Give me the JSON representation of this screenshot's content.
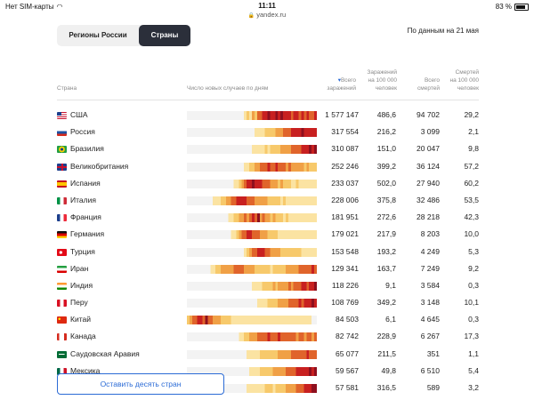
{
  "statusbar": {
    "carrier": "Нет SIM-карты",
    "time": "11:11",
    "url": "yandex.ru",
    "battery": "83 %"
  },
  "tabs": {
    "russia_label": "Регионы России",
    "world_label": "Страны",
    "active": "world"
  },
  "as_of": "По данным на 21 мая",
  "headers": {
    "country": "Страна",
    "daily_chart": "Число новых случаев по дням",
    "total_line1": "Всего",
    "total_line2": "заражений",
    "per100k_line1": "Заражений",
    "per100k_line2": "на 100 000",
    "per100k_line3": "человек",
    "deaths_line1": "Всего",
    "deaths_line2": "смертей",
    "dper_line1": "Смертей",
    "dper_line2": "на 100 000",
    "dper_line3": "человек"
  },
  "heat_colors": [
    "#f3f3f3",
    "#fbe3a2",
    "#f7c96b",
    "#f0a046",
    "#e0642b",
    "#c82020",
    "#8e0f1e"
  ],
  "rows": [
    {
      "name": "США",
      "flag": "us",
      "total": "1 577 147",
      "per100k": "486,6",
      "deaths": "94 702",
      "dper": "29,2",
      "heat": [
        0,
        0,
        0,
        0,
        0,
        0,
        0,
        0,
        0,
        0,
        0,
        0,
        0,
        0,
        0,
        0,
        0,
        0,
        0,
        0,
        0,
        0,
        1,
        2,
        1,
        3,
        2,
        4,
        4,
        5,
        5,
        6,
        5,
        5,
        6,
        5,
        6,
        5,
        5,
        5,
        4,
        5,
        5,
        4,
        5,
        4,
        5,
        4,
        4,
        5
      ]
    },
    {
      "name": "Россия",
      "flag": "ru",
      "total": "317 554",
      "per100k": "216,2",
      "deaths": "3 099",
      "dper": "2,1",
      "heat": [
        0,
        0,
        0,
        0,
        0,
        0,
        0,
        0,
        0,
        0,
        0,
        0,
        0,
        0,
        0,
        0,
        0,
        0,
        0,
        0,
        0,
        0,
        0,
        0,
        0,
        0,
        1,
        1,
        1,
        1,
        2,
        2,
        2,
        2,
        3,
        3,
        3,
        4,
        4,
        4,
        5,
        5,
        5,
        5,
        6,
        5,
        5,
        5,
        5,
        5
      ]
    },
    {
      "name": "Бразилия",
      "flag": "br",
      "total": "310 087",
      "per100k": "151,0",
      "deaths": "20 047",
      "dper": "9,8",
      "heat": [
        0,
        0,
        0,
        0,
        0,
        0,
        0,
        0,
        0,
        0,
        0,
        0,
        0,
        0,
        0,
        0,
        0,
        0,
        0,
        0,
        0,
        0,
        0,
        0,
        0,
        1,
        1,
        1,
        1,
        1,
        2,
        1,
        2,
        2,
        2,
        2,
        3,
        3,
        3,
        3,
        4,
        4,
        4,
        4,
        5,
        5,
        5,
        6,
        5,
        6
      ]
    },
    {
      "name": "Великобритания",
      "flag": "gb",
      "total": "252 246",
      "per100k": "399,2",
      "deaths": "36 124",
      "dper": "57,2",
      "heat": [
        0,
        0,
        0,
        0,
        0,
        0,
        0,
        0,
        0,
        0,
        0,
        0,
        0,
        0,
        0,
        0,
        0,
        0,
        0,
        0,
        0,
        0,
        1,
        1,
        2,
        2,
        3,
        3,
        4,
        4,
        4,
        5,
        4,
        4,
        5,
        4,
        4,
        4,
        3,
        4,
        3,
        3,
        3,
        3,
        3,
        2,
        3,
        2,
        2,
        2
      ]
    },
    {
      "name": "Испания",
      "flag": "es",
      "total": "233 037",
      "per100k": "502,0",
      "deaths": "27 940",
      "dper": "60,2",
      "heat": [
        0,
        0,
        0,
        0,
        0,
        0,
        0,
        0,
        0,
        0,
        0,
        0,
        0,
        0,
        0,
        0,
        0,
        0,
        1,
        1,
        2,
        3,
        4,
        5,
        5,
        6,
        5,
        5,
        5,
        4,
        4,
        4,
        3,
        3,
        3,
        2,
        3,
        2,
        2,
        2,
        1,
        1,
        2,
        1,
        1,
        1,
        1,
        1,
        1,
        1
      ]
    },
    {
      "name": "Италия",
      "flag": "it",
      "total": "228 006",
      "per100k": "375,8",
      "deaths": "32 486",
      "dper": "53,5",
      "heat": [
        0,
        0,
        0,
        0,
        0,
        0,
        0,
        0,
        0,
        0,
        1,
        1,
        1,
        2,
        2,
        3,
        3,
        4,
        4,
        5,
        5,
        5,
        5,
        4,
        4,
        4,
        3,
        3,
        3,
        3,
        3,
        2,
        2,
        2,
        2,
        2,
        1,
        2,
        1,
        1,
        1,
        1,
        1,
        1,
        1,
        1,
        1,
        1,
        1,
        1
      ]
    },
    {
      "name": "Франция",
      "flag": "fr",
      "total": "181 951",
      "per100k": "272,6",
      "deaths": "28 218",
      "dper": "42,3",
      "heat": [
        0,
        0,
        0,
        0,
        0,
        0,
        0,
        0,
        0,
        0,
        0,
        0,
        0,
        0,
        0,
        0,
        1,
        1,
        2,
        2,
        3,
        3,
        4,
        3,
        4,
        5,
        4,
        6,
        3,
        4,
        3,
        3,
        2,
        3,
        2,
        2,
        2,
        1,
        2,
        1,
        1,
        1,
        1,
        1,
        1,
        1,
        1,
        1,
        1,
        1
      ]
    },
    {
      "name": "Германия",
      "flag": "de",
      "total": "179 021",
      "per100k": "217,9",
      "deaths": "8 203",
      "dper": "10,0",
      "heat": [
        0,
        0,
        0,
        0,
        0,
        0,
        0,
        0,
        0,
        0,
        0,
        0,
        0,
        0,
        0,
        0,
        0,
        1,
        1,
        2,
        3,
        4,
        4,
        5,
        5,
        4,
        4,
        4,
        3,
        3,
        3,
        2,
        2,
        2,
        2,
        1,
        1,
        1,
        1,
        1,
        1,
        1,
        1,
        1,
        1,
        1,
        1,
        1,
        1,
        1
      ]
    },
    {
      "name": "Турция",
      "flag": "tr",
      "total": "153 548",
      "per100k": "193,2",
      "deaths": "4 249",
      "dper": "5,3",
      "heat": [
        0,
        0,
        0,
        0,
        0,
        0,
        0,
        0,
        0,
        0,
        0,
        0,
        0,
        0,
        0,
        0,
        0,
        0,
        0,
        0,
        0,
        0,
        1,
        2,
        3,
        4,
        4,
        5,
        5,
        5,
        4,
        4,
        3,
        3,
        3,
        3,
        2,
        2,
        2,
        2,
        2,
        2,
        2,
        2,
        1,
        1,
        1,
        1,
        1,
        1
      ]
    },
    {
      "name": "Иран",
      "flag": "ir",
      "total": "129 341",
      "per100k": "163,7",
      "deaths": "7 249",
      "dper": "9,2",
      "heat": [
        0,
        0,
        0,
        0,
        0,
        0,
        0,
        0,
        0,
        1,
        1,
        2,
        2,
        3,
        3,
        3,
        3,
        3,
        4,
        4,
        4,
        4,
        3,
        3,
        3,
        3,
        2,
        2,
        2,
        2,
        2,
        2,
        1,
        2,
        2,
        2,
        2,
        2,
        3,
        3,
        3,
        3,
        3,
        4,
        4,
        4,
        4,
        4,
        5,
        4
      ]
    },
    {
      "name": "Индия",
      "flag": "in",
      "total": "118 226",
      "per100k": "9,1",
      "deaths": "3 584",
      "dper": "0,3",
      "heat": [
        0,
        0,
        0,
        0,
        0,
        0,
        0,
        0,
        0,
        0,
        0,
        0,
        0,
        0,
        0,
        0,
        0,
        0,
        0,
        0,
        0,
        0,
        0,
        0,
        0,
        1,
        1,
        1,
        1,
        2,
        2,
        2,
        2,
        3,
        2,
        3,
        3,
        3,
        3,
        4,
        3,
        4,
        4,
        4,
        5,
        5,
        4,
        5,
        5,
        6
      ]
    },
    {
      "name": "Перу",
      "flag": "pe",
      "total": "108 769",
      "per100k": "349,2",
      "deaths": "3 148",
      "dper": "10,1",
      "heat": [
        0,
        0,
        0,
        0,
        0,
        0,
        0,
        0,
        0,
        0,
        0,
        0,
        0,
        0,
        0,
        0,
        0,
        0,
        0,
        0,
        0,
        0,
        0,
        0,
        0,
        0,
        0,
        1,
        1,
        1,
        1,
        2,
        2,
        2,
        2,
        3,
        3,
        3,
        3,
        4,
        4,
        4,
        4,
        5,
        4,
        5,
        5,
        5,
        6,
        5
      ]
    },
    {
      "name": "Китай",
      "flag": "cn",
      "total": "84 503",
      "per100k": "6,1",
      "deaths": "4 645",
      "dper": "0,3",
      "heat": [
        2,
        3,
        4,
        4,
        5,
        5,
        4,
        6,
        4,
        4,
        3,
        3,
        3,
        2,
        2,
        2,
        2,
        1,
        1,
        1,
        1,
        1,
        1,
        1,
        1,
        1,
        1,
        1,
        1,
        1,
        1,
        1,
        1,
        1,
        1,
        1,
        1,
        1,
        1,
        1,
        1,
        1,
        1,
        1,
        1,
        1,
        1,
        1,
        0,
        0
      ]
    },
    {
      "name": "Канада",
      "flag": "ca",
      "total": "82 742",
      "per100k": "228,9",
      "deaths": "6 267",
      "dper": "17,3",
      "heat": [
        0,
        0,
        0,
        0,
        0,
        0,
        0,
        0,
        0,
        0,
        0,
        0,
        0,
        0,
        0,
        0,
        0,
        0,
        0,
        0,
        1,
        1,
        2,
        2,
        3,
        3,
        3,
        4,
        4,
        4,
        4,
        5,
        4,
        4,
        4,
        5,
        4,
        4,
        4,
        4,
        4,
        4,
        3,
        4,
        4,
        3,
        4,
        4,
        3,
        4
      ]
    },
    {
      "name": "Саудовская Аравия",
      "flag": "sa",
      "total": "65 077",
      "per100k": "211,5",
      "deaths": "351",
      "dper": "1,1",
      "heat": [
        0,
        0,
        0,
        0,
        0,
        0,
        0,
        0,
        0,
        0,
        0,
        0,
        0,
        0,
        0,
        0,
        0,
        0,
        0,
        0,
        0,
        0,
        0,
        1,
        1,
        1,
        1,
        1,
        2,
        2,
        2,
        2,
        2,
        2,
        2,
        3,
        3,
        3,
        3,
        3,
        4,
        4,
        4,
        4,
        4,
        4,
        5,
        4,
        4,
        4
      ]
    },
    {
      "name": "Мексика",
      "flag": "mx",
      "total": "59 567",
      "per100k": "49,8",
      "deaths": "6 510",
      "dper": "5,4",
      "heat": [
        0,
        0,
        0,
        0,
        0,
        0,
        0,
        0,
        0,
        0,
        0,
        0,
        0,
        0,
        0,
        0,
        0,
        0,
        0,
        0,
        0,
        0,
        0,
        0,
        1,
        1,
        1,
        1,
        2,
        2,
        2,
        2,
        2,
        3,
        3,
        3,
        3,
        3,
        4,
        4,
        4,
        4,
        5,
        5,
        5,
        5,
        5,
        6,
        5,
        6
      ]
    },
    {
      "name": "",
      "flag": "cl",
      "total": "57 581",
      "per100k": "316,5",
      "deaths": "589",
      "dper": "3,2",
      "heat": [
        0,
        0,
        0,
        0,
        0,
        0,
        0,
        0,
        0,
        0,
        0,
        0,
        0,
        0,
        0,
        0,
        0,
        0,
        0,
        0,
        0,
        0,
        0,
        1,
        1,
        1,
        1,
        1,
        1,
        1,
        2,
        2,
        2,
        1,
        2,
        2,
        2,
        2,
        3,
        3,
        3,
        3,
        4,
        4,
        4,
        5,
        5,
        5,
        6,
        6
      ]
    }
  ],
  "show_more_label": "Оставить десять стран"
}
